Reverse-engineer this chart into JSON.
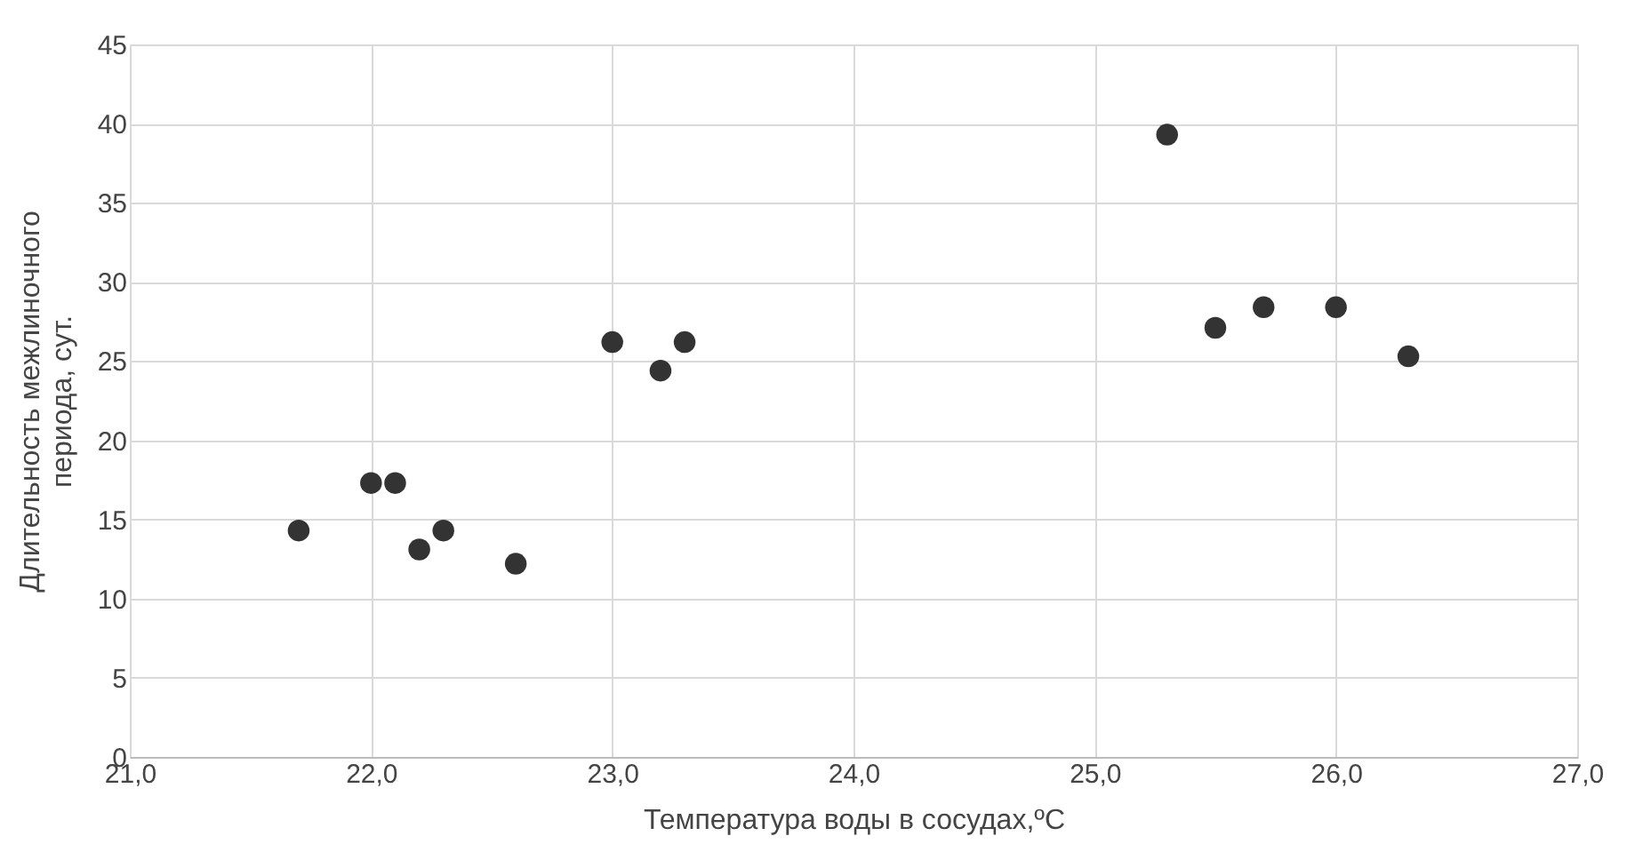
{
  "chart_data": {
    "type": "scatter",
    "xlabel": "Температура  воды в сосудах,ºC",
    "ylabel": "Длительность межлиночного\nпериода, сут.",
    "x": [
      21.7,
      22.0,
      22.1,
      22.2,
      22.3,
      22.6,
      23.0,
      23.2,
      23.3,
      25.3,
      25.5,
      25.7,
      26.0,
      26.3
    ],
    "series": [
      {
        "color": "#333333",
        "values": [
          14.3,
          17.3,
          17.3,
          13.1,
          14.3,
          12.2,
          26.2,
          24.4,
          26.2,
          39.3,
          27.1,
          28.4,
          28.4,
          25.3
        ]
      }
    ],
    "xlim": [
      21,
      27
    ],
    "xticks": [
      {
        "value": 21,
        "label": "21,0"
      },
      {
        "value": 22,
        "label": "22,0"
      },
      {
        "value": 23,
        "label": "23,0"
      },
      {
        "value": 24,
        "label": "24,0"
      },
      {
        "value": 25,
        "label": "25,0"
      },
      {
        "value": 26,
        "label": "26,0"
      },
      {
        "value": 27,
        "label": "27,0"
      }
    ],
    "ylim": [
      0,
      45
    ],
    "yticks": [
      0,
      5,
      10,
      15,
      20,
      25,
      30,
      35,
      40,
      45
    ],
    "grid": true,
    "marker": "circle"
  }
}
